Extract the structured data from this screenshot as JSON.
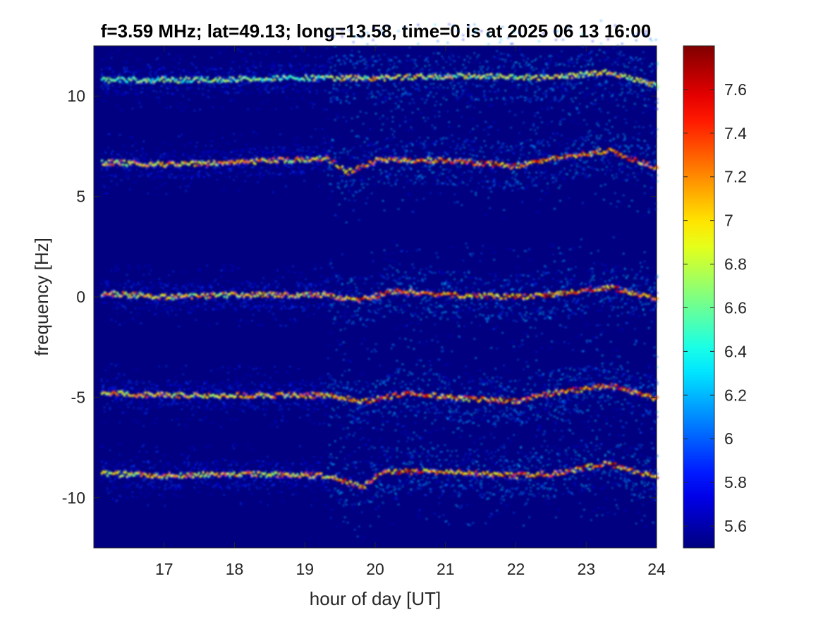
{
  "chart_data": {
    "type": "heatmap",
    "title": "f=3.59 MHz;  lat=49.13; long=13.58, time=0 is at 2025 06 13 16:00",
    "xlabel": "hour of day [UT]",
    "ylabel": "frequency [Hz]",
    "xlim": [
      16,
      24
    ],
    "ylim": [
      -12.5,
      12.5
    ],
    "x_ticks": [
      17,
      18,
      19,
      20,
      21,
      22,
      23,
      24
    ],
    "x_tick_labels": [
      "17",
      "18",
      "19",
      "20",
      "21",
      "22",
      "23",
      "24"
    ],
    "y_ticks": [
      10,
      5,
      0,
      -5,
      -10
    ],
    "y_tick_labels": [
      "10",
      "5",
      "0",
      "-5",
      "-10"
    ],
    "colorbar": {
      "colormap": "jet",
      "range": [
        5.5,
        7.8
      ],
      "ticks": [
        5.6,
        5.8,
        6,
        6.2,
        6.4,
        6.6,
        6.8,
        7,
        7.2,
        7.4,
        7.6
      ],
      "tick_labels": [
        "5.6",
        "5.8",
        "6",
        "6.2",
        "6.4",
        "6.6",
        "6.8",
        "7",
        "7.2",
        "7.4",
        "7.6"
      ]
    },
    "background_value": 5.5,
    "bands": [
      {
        "center_hz": 10.8,
        "peak_intensity": 7.2,
        "description_points": [
          [
            16.1,
            10.8
          ],
          [
            17.5,
            10.8
          ],
          [
            18.5,
            10.9
          ],
          [
            19.3,
            10.9
          ],
          [
            20.0,
            10.9
          ],
          [
            21.3,
            11.0
          ],
          [
            22.5,
            10.9
          ],
          [
            23.3,
            11.2
          ],
          [
            24.0,
            10.5
          ]
        ]
      },
      {
        "center_hz": 6.8,
        "peak_intensity": 7.8,
        "description_points": [
          [
            16.1,
            6.7
          ],
          [
            17.0,
            6.6
          ],
          [
            18.0,
            6.7
          ],
          [
            19.3,
            6.9
          ],
          [
            19.6,
            6.2
          ],
          [
            20.0,
            6.8
          ],
          [
            21.0,
            6.8
          ],
          [
            22.0,
            6.5
          ],
          [
            22.5,
            6.9
          ],
          [
            23.3,
            7.3
          ],
          [
            24.0,
            6.4
          ]
        ]
      },
      {
        "center_hz": 0.1,
        "peak_intensity": 7.8,
        "description_points": [
          [
            16.1,
            0.2
          ],
          [
            17.0,
            0.0
          ],
          [
            18.0,
            0.1
          ],
          [
            19.3,
            0.1
          ],
          [
            19.7,
            -0.2
          ],
          [
            20.3,
            0.3
          ],
          [
            21.0,
            0.1
          ],
          [
            22.0,
            0.0
          ],
          [
            22.5,
            0.1
          ],
          [
            23.3,
            0.5
          ],
          [
            24.0,
            -0.1
          ]
        ]
      },
      {
        "center_hz": -4.9,
        "peak_intensity": 7.8,
        "description_points": [
          [
            16.1,
            -4.8
          ],
          [
            17.0,
            -4.9
          ],
          [
            18.0,
            -4.9
          ],
          [
            19.3,
            -4.9
          ],
          [
            19.8,
            -5.2
          ],
          [
            20.5,
            -4.8
          ],
          [
            21.0,
            -5.0
          ],
          [
            22.0,
            -5.2
          ],
          [
            22.5,
            -4.8
          ],
          [
            23.3,
            -4.4
          ],
          [
            24.0,
            -5.1
          ]
        ]
      },
      {
        "center_hz": -8.9,
        "peak_intensity": 7.8,
        "description_points": [
          [
            16.1,
            -8.8
          ],
          [
            17.0,
            -8.9
          ],
          [
            18.0,
            -8.8
          ],
          [
            19.3,
            -8.9
          ],
          [
            19.8,
            -9.5
          ],
          [
            20.1,
            -8.7
          ],
          [
            21.0,
            -8.7
          ],
          [
            22.0,
            -8.9
          ],
          [
            22.5,
            -8.8
          ],
          [
            23.3,
            -8.3
          ],
          [
            24.0,
            -9.0
          ]
        ]
      }
    ]
  }
}
